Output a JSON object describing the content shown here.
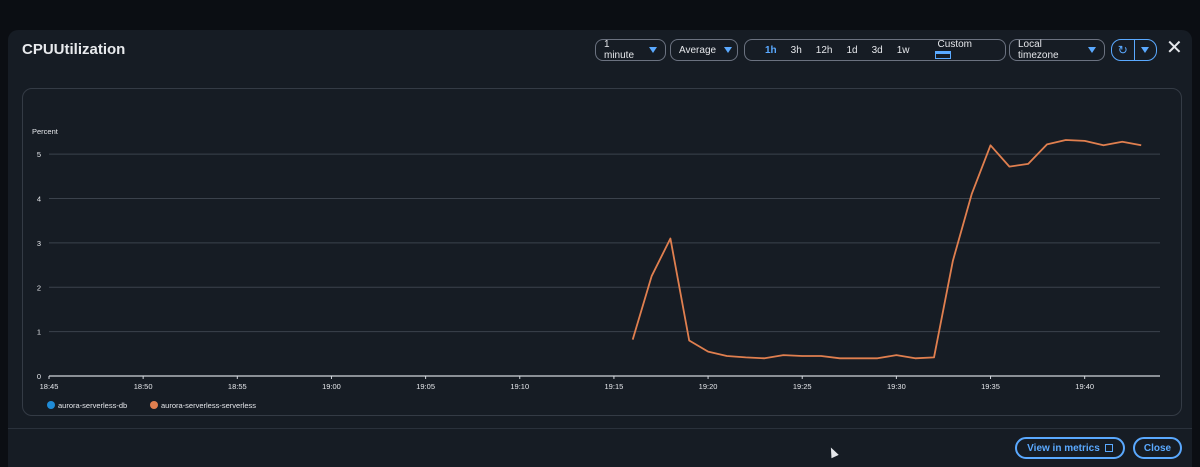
{
  "modal": {
    "title": "CPUUtilization",
    "period": "1 minute",
    "statistic": "Average",
    "ranges": [
      "1h",
      "3h",
      "12h",
      "1d",
      "3d",
      "1w"
    ],
    "active_range": "1h",
    "custom_label": "Custom",
    "timezone": "Local timezone",
    "view_in_metrics": "View in metrics",
    "close": "Close"
  },
  "chart_data": {
    "type": "line",
    "ylabel": "Percent",
    "ylim": [
      0,
      5.5
    ],
    "yticks": [
      0,
      1,
      2,
      3,
      4,
      5
    ],
    "xticks": [
      "18:45",
      "18:50",
      "18:55",
      "19:00",
      "19:05",
      "19:10",
      "19:15",
      "19:20",
      "19:25",
      "19:30",
      "19:35",
      "19:40"
    ],
    "xlim_minutes": [
      0,
      59
    ],
    "legend_position": "bottom-left",
    "grid": true,
    "series": [
      {
        "name": "aurora-serverless-db",
        "color": "#1f8bd6",
        "points": []
      },
      {
        "name": "aurora-serverless-serverless",
        "color": "#e07f4f",
        "points": [
          [
            "19:16",
            0.82
          ],
          [
            "19:17",
            2.25
          ],
          [
            "19:18",
            3.1
          ],
          [
            "19:19",
            0.8
          ],
          [
            "19:20",
            0.55
          ],
          [
            "19:21",
            0.45
          ],
          [
            "19:22",
            0.42
          ],
          [
            "19:23",
            0.4
          ],
          [
            "19:24",
            0.47
          ],
          [
            "19:25",
            0.45
          ],
          [
            "19:26",
            0.45
          ],
          [
            "19:27",
            0.4
          ],
          [
            "19:28",
            0.4
          ],
          [
            "19:29",
            0.4
          ],
          [
            "19:30",
            0.47
          ],
          [
            "19:31",
            0.4
          ],
          [
            "19:32",
            0.42
          ],
          [
            "19:33",
            2.6
          ],
          [
            "19:34",
            4.1
          ],
          [
            "19:35",
            5.2
          ],
          [
            "19:36",
            4.72
          ],
          [
            "19:37",
            4.78
          ],
          [
            "19:38",
            5.22
          ],
          [
            "19:39",
            5.32
          ],
          [
            "19:40",
            5.3
          ],
          [
            "19:41",
            5.2
          ],
          [
            "19:42",
            5.28
          ],
          [
            "19:43",
            5.2
          ]
        ]
      }
    ]
  }
}
